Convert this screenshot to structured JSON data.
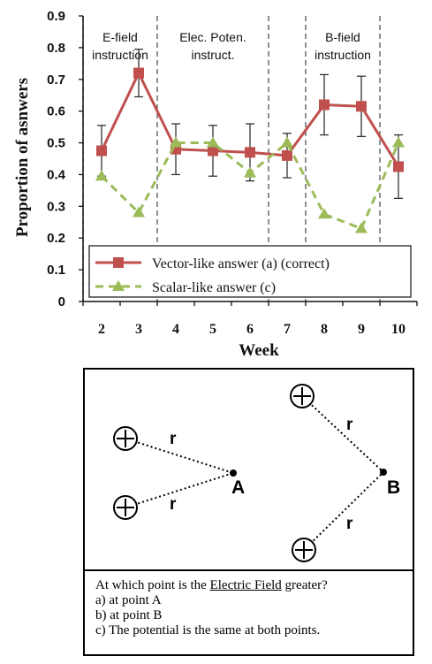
{
  "chart_data": {
    "type": "line",
    "categories": [
      "2",
      "3",
      "4",
      "5",
      "6",
      "7",
      "8",
      "9",
      "10"
    ],
    "xlabel": "Week",
    "ylabel": "Proportion of asnwers",
    "ylim": [
      0,
      0.9
    ],
    "yticks": [
      "0",
      "0.1",
      "0.2",
      "0.3",
      "0.4",
      "0.5",
      "0.6",
      "0.7",
      "0.8",
      "0.9"
    ],
    "series": [
      {
        "name": "Vector-like answer (a) (correct)",
        "values": [
          0.475,
          0.72,
          0.48,
          0.475,
          0.47,
          0.46,
          0.62,
          0.615,
          0.425
        ],
        "error": [
          0.08,
          0.075,
          0.08,
          0.08,
          0.09,
          0.07,
          0.095,
          0.095,
          0.1
        ],
        "color": "#c0504d",
        "marker": "square",
        "dashed": false
      },
      {
        "name": "Scalar-like answer (c)",
        "values": [
          0.395,
          0.28,
          0.5,
          0.5,
          0.405,
          0.5,
          0.275,
          0.23,
          0.5
        ],
        "color": "#9bbb59",
        "marker": "triangle",
        "dashed": true
      }
    ],
    "regions": [
      {
        "label_lines": [
          "E-field",
          "instruction"
        ],
        "start": "2",
        "end": "4"
      },
      {
        "label_lines": [
          "Elec. Poten.",
          "instruct."
        ],
        "start": "4",
        "end": "7"
      },
      {
        "label_lines": [
          "B-field",
          "instruction"
        ],
        "start": "8",
        "end": "10"
      }
    ],
    "legend": "bottom-left inside plot",
    "grid": false
  },
  "question": {
    "diagram": {
      "distance_label": "r",
      "point_a": "A",
      "point_b": "B"
    },
    "text_before": "At which point is the ",
    "text_underlined": "Electric Field",
    "text_after": " greater?",
    "option_a": "a) at point A",
    "option_b": "b) at point B",
    "option_c": "c) The potential is the same at both points."
  }
}
